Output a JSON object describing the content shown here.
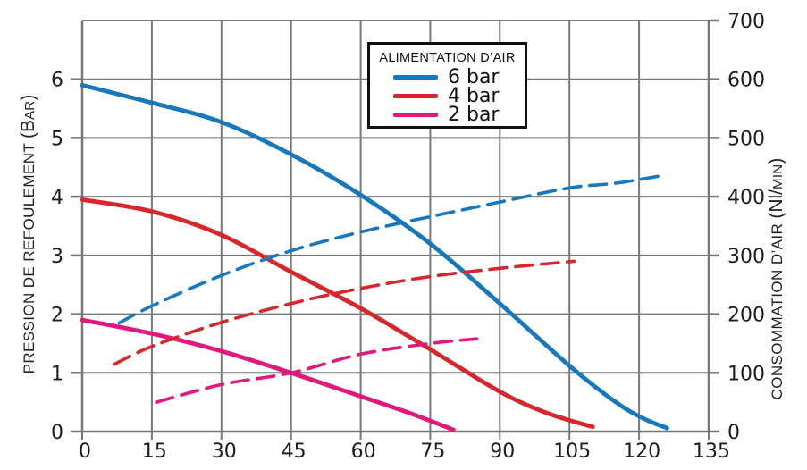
{
  "colors": {
    "blue": "#1878bc",
    "red": "#d8262c",
    "magenta": "#e01a7b",
    "grid": "#787878",
    "text": "#1d1d1d"
  },
  "chart_data": {
    "type": "line",
    "title": "",
    "grid": true,
    "x_axis": {
      "label": "",
      "range": [
        0,
        135
      ],
      "ticks": [
        0,
        15,
        30,
        45,
        60,
        75,
        90,
        105,
        120,
        135
      ]
    },
    "y_left_axis": {
      "label": "PRESSION DE REFOULEMENT (BAR)",
      "parts": [
        "PRESSION DE REFOULEMENT ",
        "(B",
        "AR",
        ")"
      ],
      "unit": "bar",
      "range": [
        0,
        7
      ],
      "ticks": [
        0,
        1,
        2,
        3,
        4,
        5,
        6
      ]
    },
    "y_right_axis": {
      "label": "CONSOMMATION D’AIR (Nl/MIN)",
      "parts": [
        "CONSOMMATION D’AIR ",
        "(Nl/",
        "MIN",
        ")"
      ],
      "unit": "Nl/min",
      "range": [
        0,
        700
      ],
      "ticks": [
        0,
        100,
        200,
        300,
        400,
        500,
        600,
        700
      ]
    },
    "legend": {
      "title": "ALIMENTATION D’AIR",
      "position": "top-center",
      "items": [
        {
          "label": "6 bar",
          "color": "#1878bc"
        },
        {
          "label": "4 bar",
          "color": "#d8262c"
        },
        {
          "label": "2 bar",
          "color": "#e01a7b"
        }
      ]
    },
    "series": [
      {
        "name": "pression-6bar",
        "legend": "6 bar",
        "axis": "left",
        "style": "solid",
        "color": "#1878bc",
        "points": [
          [
            0,
            5.9
          ],
          [
            15,
            5.6
          ],
          [
            30,
            5.27
          ],
          [
            45,
            4.72
          ],
          [
            60,
            4.03
          ],
          [
            75,
            3.2
          ],
          [
            90,
            2.18
          ],
          [
            105,
            1.12
          ],
          [
            115,
            0.5
          ],
          [
            121,
            0.22
          ],
          [
            126,
            0.06
          ]
        ]
      },
      {
        "name": "pression-4bar",
        "legend": "4 bar",
        "axis": "left",
        "style": "solid",
        "color": "#d8262c",
        "points": [
          [
            0,
            3.95
          ],
          [
            15,
            3.75
          ],
          [
            30,
            3.35
          ],
          [
            45,
            2.72
          ],
          [
            60,
            2.1
          ],
          [
            75,
            1.4
          ],
          [
            90,
            0.68
          ],
          [
            100,
            0.32
          ],
          [
            110,
            0.08
          ]
        ]
      },
      {
        "name": "pression-2bar",
        "legend": "2 bar",
        "axis": "left",
        "style": "solid",
        "color": "#e01a7b",
        "points": [
          [
            0,
            1.9
          ],
          [
            15,
            1.67
          ],
          [
            30,
            1.37
          ],
          [
            45,
            1.0
          ],
          [
            60,
            0.6
          ],
          [
            70,
            0.33
          ],
          [
            80,
            0.03
          ]
        ]
      },
      {
        "name": "consommation-6bar",
        "legend": "6 bar",
        "axis": "right",
        "style": "dashed",
        "color": "#1878bc",
        "points": [
          [
            8,
            185
          ],
          [
            15,
            214
          ],
          [
            30,
            266
          ],
          [
            45,
            308
          ],
          [
            60,
            340
          ],
          [
            75,
            366
          ],
          [
            90,
            391
          ],
          [
            105,
            415
          ],
          [
            115,
            423
          ],
          [
            125,
            436
          ]
        ]
      },
      {
        "name": "consommation-4bar",
        "legend": "4 bar",
        "axis": "right",
        "style": "dashed",
        "color": "#d8262c",
        "points": [
          [
            7,
            115
          ],
          [
            15,
            145
          ],
          [
            30,
            186
          ],
          [
            45,
            218
          ],
          [
            60,
            244
          ],
          [
            75,
            264
          ],
          [
            90,
            278
          ],
          [
            106,
            290
          ]
        ]
      },
      {
        "name": "consommation-2bar",
        "legend": "2 bar",
        "axis": "right",
        "style": "dashed",
        "color": "#e01a7b",
        "points": [
          [
            16,
            50
          ],
          [
            30,
            80
          ],
          [
            45,
            100
          ],
          [
            60,
            132
          ],
          [
            75,
            150
          ],
          [
            85,
            158
          ]
        ]
      }
    ]
  }
}
